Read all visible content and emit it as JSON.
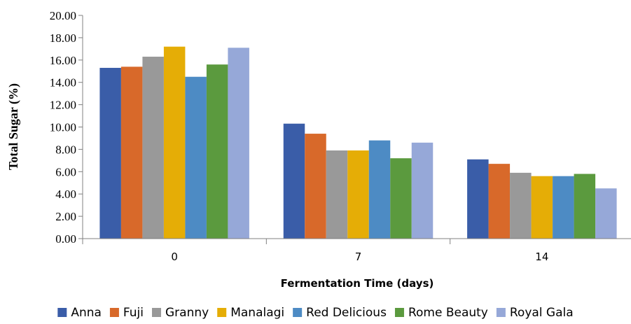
{
  "chart_data": {
    "type": "bar",
    "title": "",
    "xlabel": "Fermentation Time (days)",
    "ylabel": "Total Sugar (%)",
    "categories": [
      "0",
      "7",
      "14"
    ],
    "ylim": [
      0,
      20
    ],
    "yticks": [
      "0.00",
      "2.00",
      "4.00",
      "6.00",
      "8.00",
      "10.00",
      "12.00",
      "14.00",
      "16.00",
      "18.00",
      "20.00"
    ],
    "grid": false,
    "legend_position": "bottom",
    "series": [
      {
        "name": "Anna",
        "color": "#3a5da8",
        "values": [
          15.3,
          10.3,
          7.1
        ]
      },
      {
        "name": "Fuji",
        "color": "#d8692a",
        "values": [
          15.4,
          9.4,
          6.7
        ]
      },
      {
        "name": "Granny",
        "color": "#999999",
        "values": [
          16.3,
          7.9,
          5.9
        ]
      },
      {
        "name": "Manalagi",
        "color": "#e5ad06",
        "values": [
          17.2,
          7.9,
          5.6
        ]
      },
      {
        "name": "Red Delicious",
        "color": "#4d8bc4",
        "values": [
          14.5,
          8.8,
          5.6
        ]
      },
      {
        "name": "Rome Beauty",
        "color": "#5b9a3e",
        "values": [
          15.6,
          7.2,
          5.8
        ]
      },
      {
        "name": "Royal Gala",
        "color": "#96a8d8",
        "values": [
          17.1,
          8.6,
          4.5
        ]
      }
    ]
  }
}
